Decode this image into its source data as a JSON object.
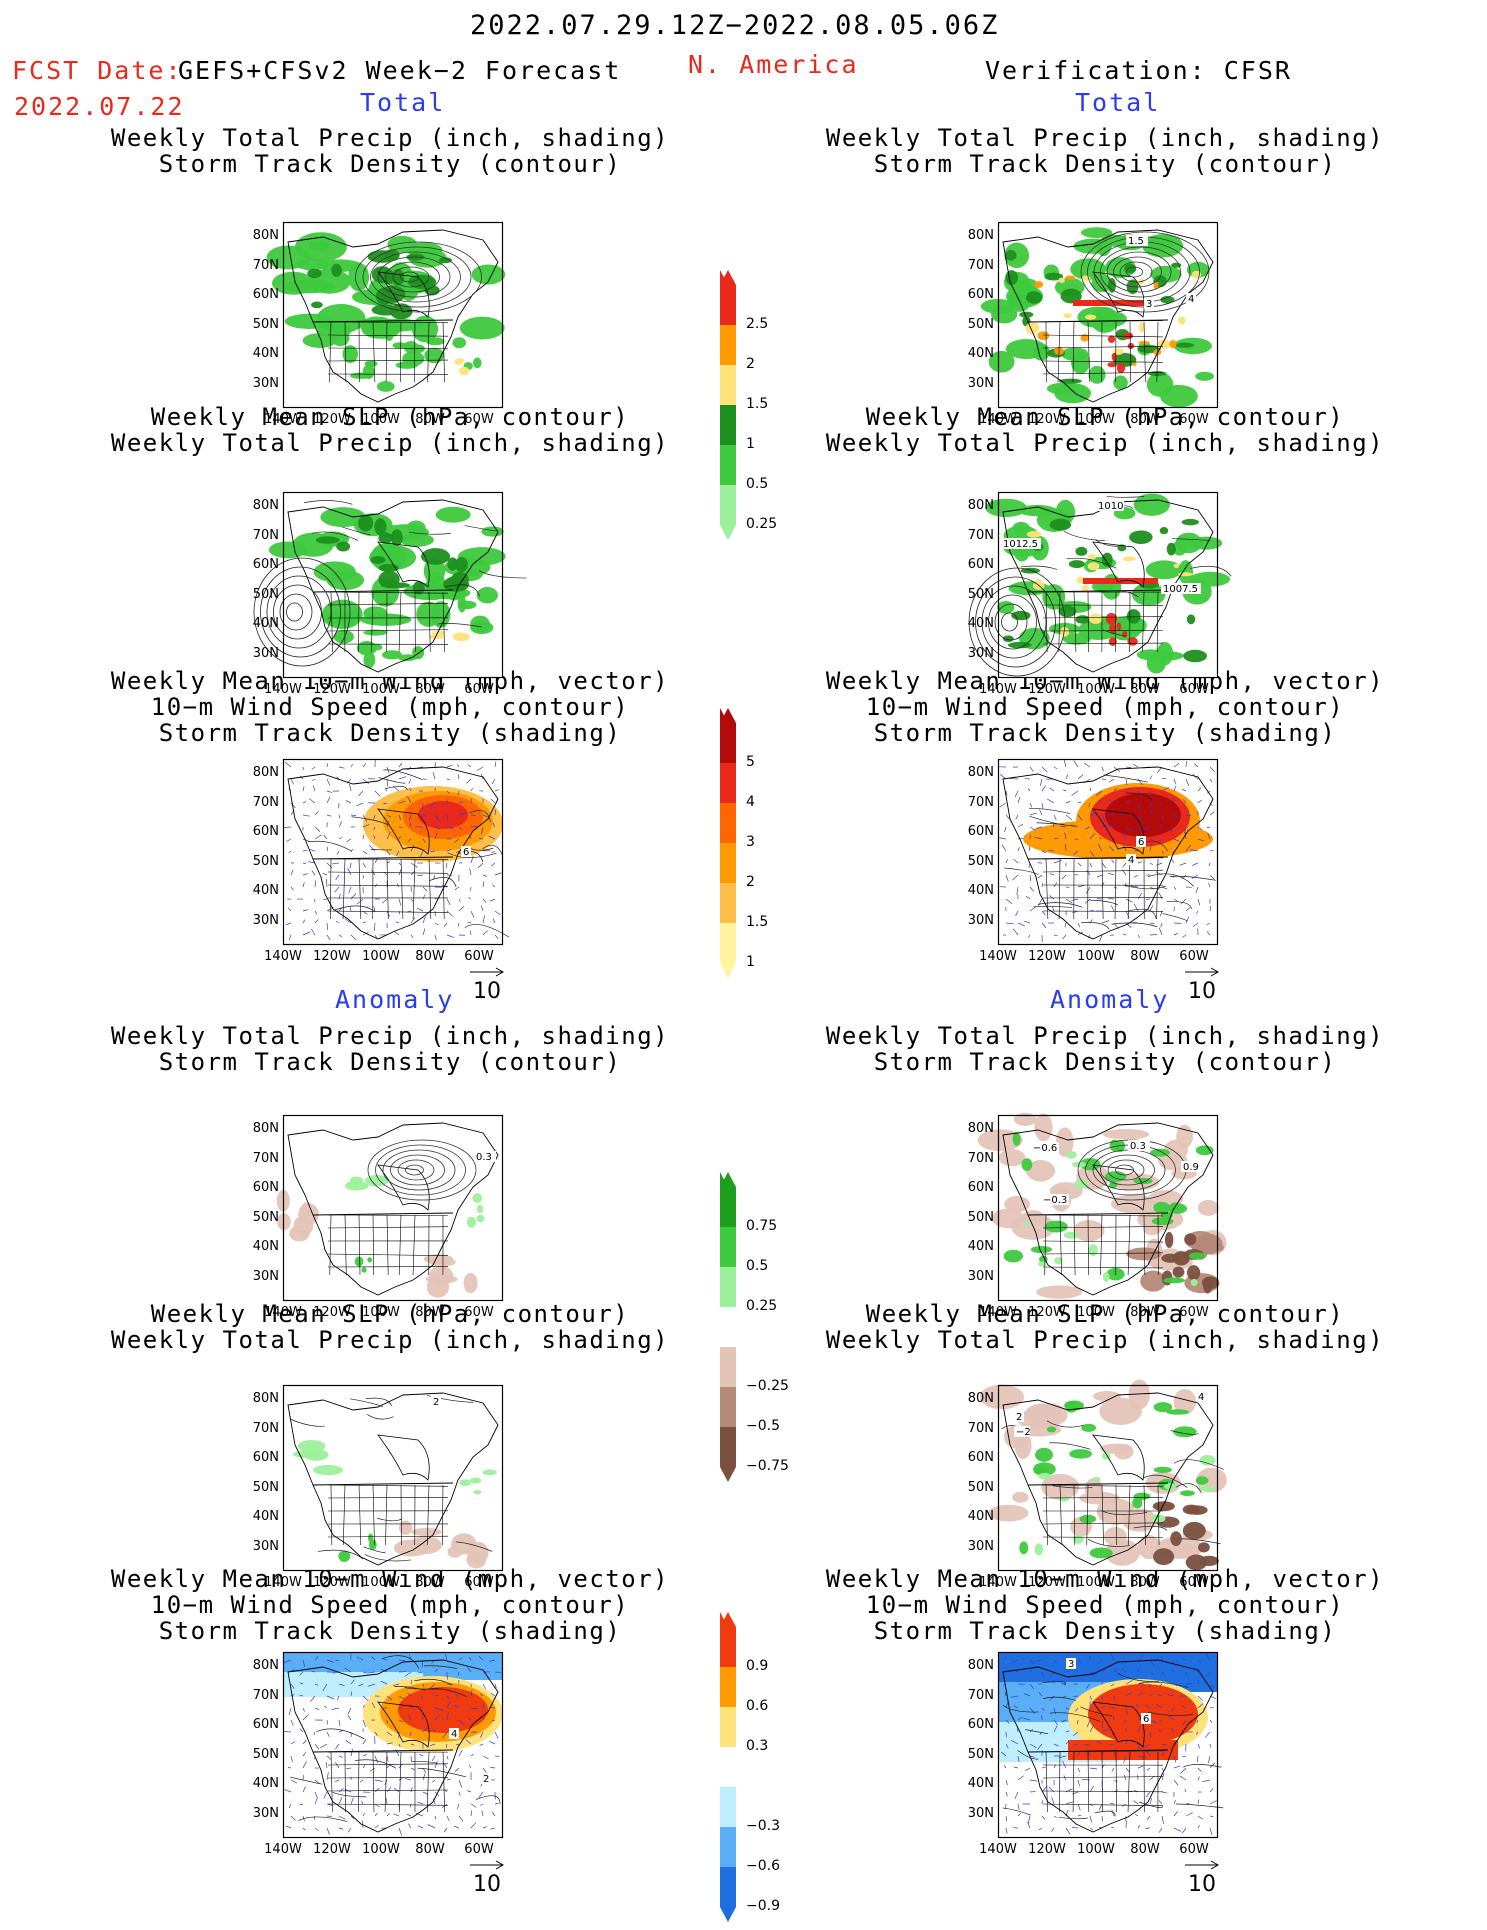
{
  "header": {
    "period": "2022.07.29.12Z−2022.08.05.06Z",
    "fcst_label": "FCST Date:",
    "fcst_date": "2022.07.22",
    "model": "GEFS+CFSv2 Week−2 Forecast",
    "region": "N. America",
    "verification": "Verification: CFSR"
  },
  "sections": {
    "total": "Total",
    "anomaly": "Anomaly"
  },
  "titles": {
    "precip_storm": [
      "Weekly Total Precip (inch, shading)",
      "Storm Track Density (contour)"
    ],
    "slp_precip": [
      "Weekly Mean SLP (hPa, contour)",
      "Weekly Total Precip (inch, shading)"
    ],
    "wind_storm": [
      "Weekly Mean 10−m Wind (mph, vector)",
      "10−m Wind Speed (mph, contour)",
      "Storm Track Density (shading)"
    ]
  },
  "axes": {
    "lat": [
      "80N",
      "70N",
      "60N",
      "50N",
      "40N",
      "30N"
    ],
    "lon": [
      "140W",
      "120W",
      "100W",
      "80W",
      "60W"
    ]
  },
  "vector_ref": "10",
  "contour_labels": {
    "fc_precip_storm": [],
    "ob_precip_storm": [
      "1.5",
      "3",
      "4"
    ],
    "ob_slp_precip": [
      "1010",
      "1012.5",
      "1007.5"
    ],
    "fc_wind": [
      "6"
    ],
    "ob_wind": [
      "6",
      "4"
    ],
    "fa_precip_storm": [
      "0.3"
    ],
    "oa_precip_storm": [
      "−0.6",
      "0.3",
      "0.9",
      "−0.3"
    ],
    "fa_slp": [
      "2"
    ],
    "oa_slp": [
      "2",
      "−2",
      "4"
    ],
    "fa_wind": [
      "4",
      "2"
    ],
    "oa_wind": [
      "3",
      "6"
    ]
  },
  "colorbars": {
    "precip": {
      "labels": [
        "2.5",
        "2",
        "1.5",
        "1",
        "0.5",
        "0.25"
      ],
      "colors": [
        "#e8291c",
        "#ff9a00",
        "#ffe27a",
        "#1d8f1d",
        "#3ec93e",
        "#9cf09c"
      ]
    },
    "storm": {
      "labels": [
        "5",
        "4",
        "3",
        "2",
        "1.5",
        "1"
      ],
      "colors": [
        "#b40a0a",
        "#e8291c",
        "#ff6600",
        "#ff9a00",
        "#ffc04a",
        "#fff3a0"
      ]
    },
    "precip_anom": {
      "labels": [
        "0.75",
        "0.5",
        "0.25",
        "−0.25",
        "−0.5",
        "−0.75"
      ],
      "colors": [
        "#1d9f1d",
        "#3ec93e",
        "#9cf09c",
        "#ffffff",
        "#e4c4b7",
        "#b58a78",
        "#7a5040"
      ]
    },
    "storm_anom": {
      "labels": [
        "0.9",
        "0.6",
        "0.3",
        "−0.3",
        "−0.6",
        "−0.9"
      ],
      "colors": [
        "#f03a10",
        "#ff9a00",
        "#ffe27a",
        "#ffffff",
        "#bfeeff",
        "#5aaef5",
        "#1f6fe0"
      ]
    }
  },
  "colors": {
    "red_text": "#e8291c",
    "blue_text": "#2a3cf0",
    "land": "#ffffff"
  }
}
